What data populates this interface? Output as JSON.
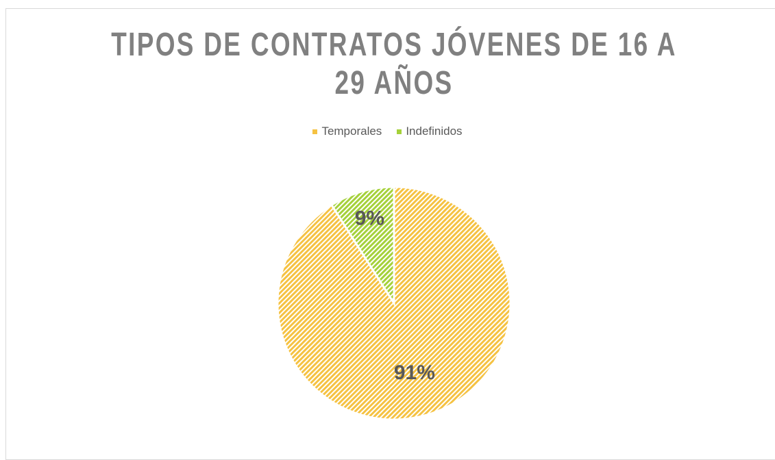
{
  "chart_data": {
    "type": "pie",
    "title": "TIPOS DE CONTRATOS JÓVENES DE 16 A 29 AÑOS",
    "categories": [
      "Temporales",
      "Indefinidos"
    ],
    "values": [
      91,
      9
    ],
    "value_labels": [
      "91%",
      "9%"
    ],
    "colors": [
      "#f5c242",
      "#a5d13a"
    ],
    "legend": "top"
  }
}
